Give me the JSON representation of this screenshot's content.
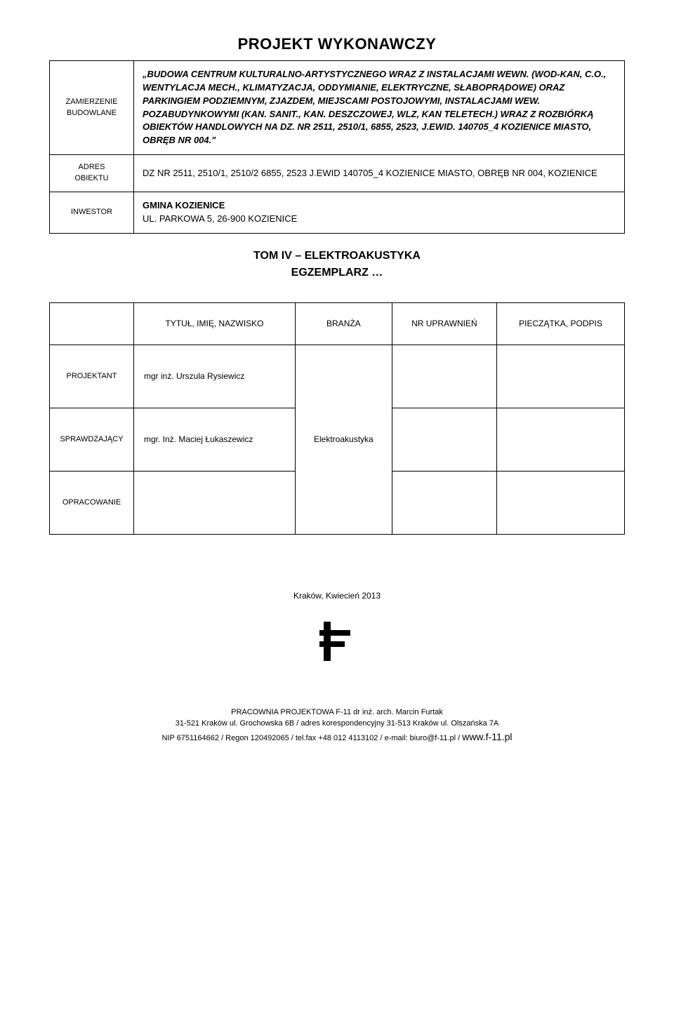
{
  "title": "PROJEKT WYKONAWCZY",
  "rows": [
    {
      "label_a": "ZAMIERZENIE",
      "label_b": "BUDOWLANE",
      "value": "„BUDOWA CENTRUM KULTURALNO-ARTYSTYCZNEGO WRAZ Z INSTALACJAMI WEWN. (WOD-KAN, C.O., WENTYLACJA MECH., KLIMATYZACJA, ODDYMIANIE, ELEKTRYCZNE, SŁABOPRĄDOWE) ORAZ PARKINGIEM PODZIEMNYM, ZJAZDEM, MIEJSCAMI POSTOJOWYMI, INSTALACJAMI WEW. POZABUDYNKOWYMI (KAN. SANIT., KAN. DESZCZOWEJ, WLZ, KAN TELETECH.) WRAZ Z ROZBIÓRKĄ OBIEKTÓW HANDLOWYCH NA DZ. NR 2511, 2510/1, 6855, 2523, J.EWID. 140705_4 KOZIENICE MIASTO, OBRĘB NR 004.\""
    },
    {
      "label_a": "ADRES",
      "label_b": "OBIEKTU",
      "value": "DZ NR 2511, 2510/1, 2510/2 6855, 2523 J.EWID 140705_4 KOZIENICE MIASTO, OBRĘB NR 004, KOZIENICE"
    },
    {
      "label_a": "INWESTOR",
      "label_b": "",
      "value_bold": "GMINA KOZIENICE",
      "value_rest": "UL. PARKOWA 5, 26-900 KOZIENICE"
    }
  ],
  "section_line1": "TOM IV – ELEKTROAKUSTYKA",
  "section_line2": "EGZEMPLARZ …",
  "sign": {
    "headers": [
      "",
      "TYTUŁ, IMIĘ, NAZWISKO",
      "BRANŻA",
      "NR UPRAWNIEŃ",
      "PIECZĄTKA, PODPIS"
    ],
    "rows": [
      {
        "role": "PROJEKTANT",
        "name": "mgr inż. Urszula Rysiewicz"
      },
      {
        "role": "SPRAWDZAJĄCY",
        "name": "mgr. Inż. Maciej Łukaszewicz"
      },
      {
        "role": "OPRACOWANIE",
        "name": ""
      }
    ],
    "branch": "Elektroakustyka"
  },
  "date": "Kraków, Kwiecień 2013",
  "footer": {
    "l1": "PRACOWNIA PROJEKTOWA F-11 dr inż. arch. Marcin Furtak",
    "l2": "31-521 Kraków ul. Grochowska 6B / adres korespondencyjny 31-513 Kraków ul. Olszańska 7A",
    "l3a": "NIP 6751164662 / Regon 120492065 / tel.fax +48 012 4113102 / e-mail: biuro@f-11.pl / ",
    "l3b": "www.f-11.pl"
  }
}
